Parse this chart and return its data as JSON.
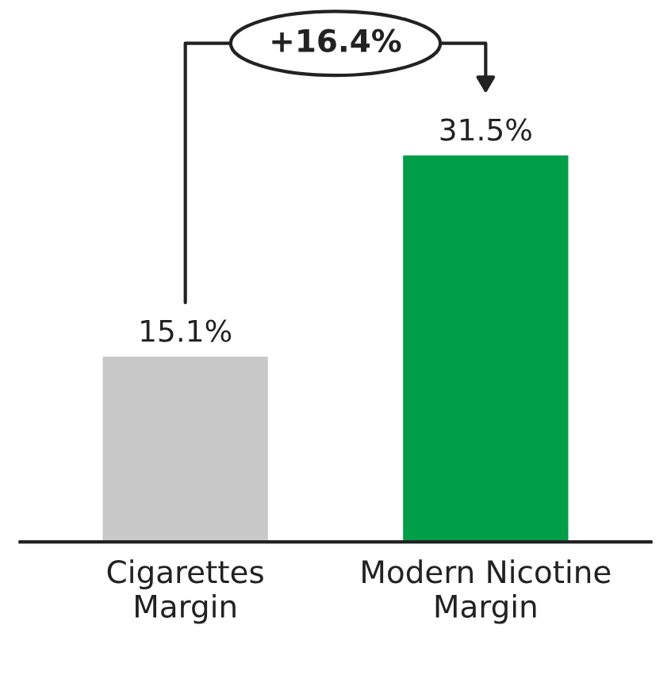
{
  "chart_data": {
    "type": "bar",
    "categories": [
      "Cigarettes\nMargin",
      "Modern Nicotine\nMargin"
    ],
    "values": [
      15.1,
      31.5
    ],
    "colors": [
      "#c8c8c8",
      "#009e47"
    ],
    "value_labels": [
      "15.1%",
      "31.5%"
    ],
    "annotations": [
      "+16.4%"
    ],
    "grid": false,
    "legend": false
  }
}
